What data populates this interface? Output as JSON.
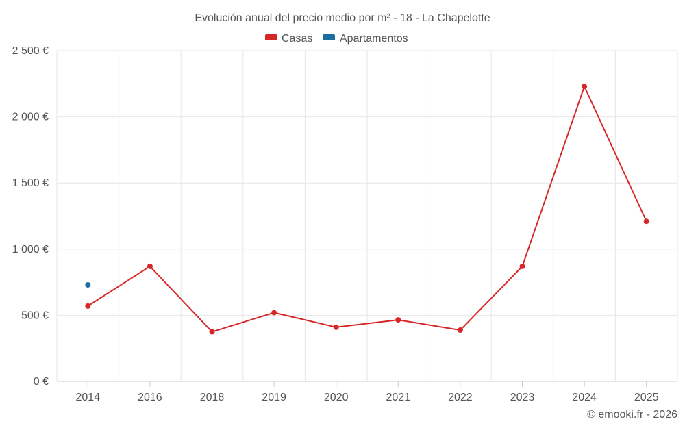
{
  "chart_data": {
    "type": "line",
    "title": "Evolución anual del precio medio por m² - 18 - La Chapelotte",
    "categories": [
      "2014",
      "2016",
      "2018",
      "2019",
      "2020",
      "2021",
      "2022",
      "2023",
      "2024",
      "2025"
    ],
    "series": [
      {
        "name": "Casas",
        "color": "#d62728",
        "values": [
          570,
          870,
          375,
          520,
          410,
          465,
          388,
          870,
          2230,
          1210
        ]
      },
      {
        "name": "Apartamentos",
        "color": "#1a6fa0",
        "values": [
          730,
          null,
          null,
          null,
          null,
          null,
          null,
          null,
          null,
          null
        ]
      }
    ],
    "ylim": [
      0,
      2500
    ],
    "yticks": [
      0,
      500,
      1000,
      1500,
      2000,
      2500
    ],
    "ytick_labels": [
      "0 €",
      "500 €",
      "1 000 €",
      "1 500 €",
      "2 000 €",
      "2 500 €"
    ],
    "xlabel": "",
    "ylabel": "",
    "grid": true,
    "legend_position": "top-center"
  },
  "credit": "© emooki.fr - 2026"
}
